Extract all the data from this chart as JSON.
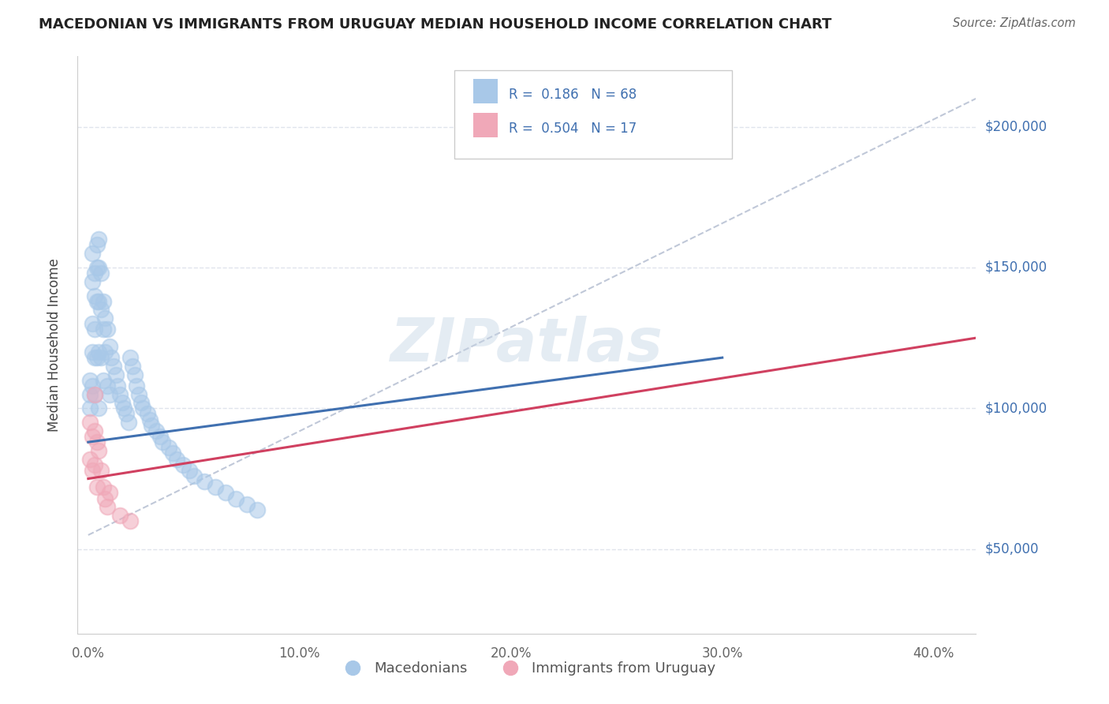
{
  "title": "MACEDONIAN VS IMMIGRANTS FROM URUGUAY MEDIAN HOUSEHOLD INCOME CORRELATION CHART",
  "source": "Source: ZipAtlas.com",
  "xlabel_ticks": [
    "0.0%",
    "10.0%",
    "20.0%",
    "30.0%",
    "40.0%"
  ],
  "xlabel_vals": [
    0.0,
    0.1,
    0.2,
    0.3,
    0.4
  ],
  "ylabel": "Median Household Income",
  "xlim": [
    -0.005,
    0.42
  ],
  "ylim": [
    20000,
    225000
  ],
  "ytick_vals": [
    50000,
    100000,
    150000,
    200000
  ],
  "ytick_labels": [
    "$50,000",
    "$100,000",
    "$150,000",
    "$200,000"
  ],
  "blue_scatter_x": [
    0.001,
    0.001,
    0.001,
    0.002,
    0.002,
    0.002,
    0.002,
    0.002,
    0.003,
    0.003,
    0.003,
    0.003,
    0.003,
    0.004,
    0.004,
    0.004,
    0.004,
    0.005,
    0.005,
    0.005,
    0.005,
    0.005,
    0.006,
    0.006,
    0.006,
    0.007,
    0.007,
    0.007,
    0.008,
    0.008,
    0.009,
    0.009,
    0.01,
    0.01,
    0.011,
    0.012,
    0.013,
    0.014,
    0.015,
    0.016,
    0.017,
    0.018,
    0.019,
    0.02,
    0.021,
    0.022,
    0.023,
    0.024,
    0.025,
    0.026,
    0.028,
    0.029,
    0.03,
    0.032,
    0.034,
    0.035,
    0.038,
    0.04,
    0.042,
    0.045,
    0.048,
    0.05,
    0.055,
    0.06,
    0.065,
    0.07,
    0.075,
    0.08
  ],
  "blue_scatter_y": [
    110000,
    105000,
    100000,
    155000,
    145000,
    130000,
    120000,
    108000,
    148000,
    140000,
    128000,
    118000,
    105000,
    158000,
    150000,
    138000,
    118000,
    160000,
    150000,
    138000,
    120000,
    100000,
    148000,
    135000,
    118000,
    138000,
    128000,
    110000,
    132000,
    120000,
    128000,
    108000,
    122000,
    105000,
    118000,
    115000,
    112000,
    108000,
    105000,
    102000,
    100000,
    98000,
    95000,
    118000,
    115000,
    112000,
    108000,
    105000,
    102000,
    100000,
    98000,
    96000,
    94000,
    92000,
    90000,
    88000,
    86000,
    84000,
    82000,
    80000,
    78000,
    76000,
    74000,
    72000,
    70000,
    68000,
    66000,
    64000
  ],
  "pink_scatter_x": [
    0.001,
    0.001,
    0.002,
    0.002,
    0.003,
    0.003,
    0.003,
    0.004,
    0.004,
    0.005,
    0.006,
    0.007,
    0.008,
    0.009,
    0.01,
    0.015,
    0.02
  ],
  "pink_scatter_y": [
    95000,
    82000,
    90000,
    78000,
    105000,
    92000,
    80000,
    88000,
    72000,
    85000,
    78000,
    72000,
    68000,
    65000,
    70000,
    62000,
    60000
  ],
  "blue_line_x": [
    0.0,
    0.3
  ],
  "blue_line_y": [
    88000,
    118000
  ],
  "pink_line_x": [
    0.0,
    0.42
  ],
  "pink_line_y": [
    75000,
    125000
  ],
  "dashed_line_x": [
    0.0,
    0.42
  ],
  "dashed_line_y": [
    55000,
    210000
  ],
  "blue_color": "#a8c8e8",
  "pink_color": "#f0a8b8",
  "blue_fill_color": "#a8c8e8",
  "pink_fill_color": "#f0a8b8",
  "blue_line_color": "#4070b0",
  "pink_line_color": "#d04060",
  "dashed_color": "#c0c8d8",
  "legend_r_blue": "0.186",
  "legend_n_blue": "68",
  "legend_r_pink": "0.504",
  "legend_n_pink": "17",
  "legend_label_blue": "Macedonians",
  "legend_label_pink": "Immigrants from Uruguay",
  "watermark": "ZIPatlas",
  "background_color": "#ffffff",
  "grid_color": "#e0e4ec"
}
